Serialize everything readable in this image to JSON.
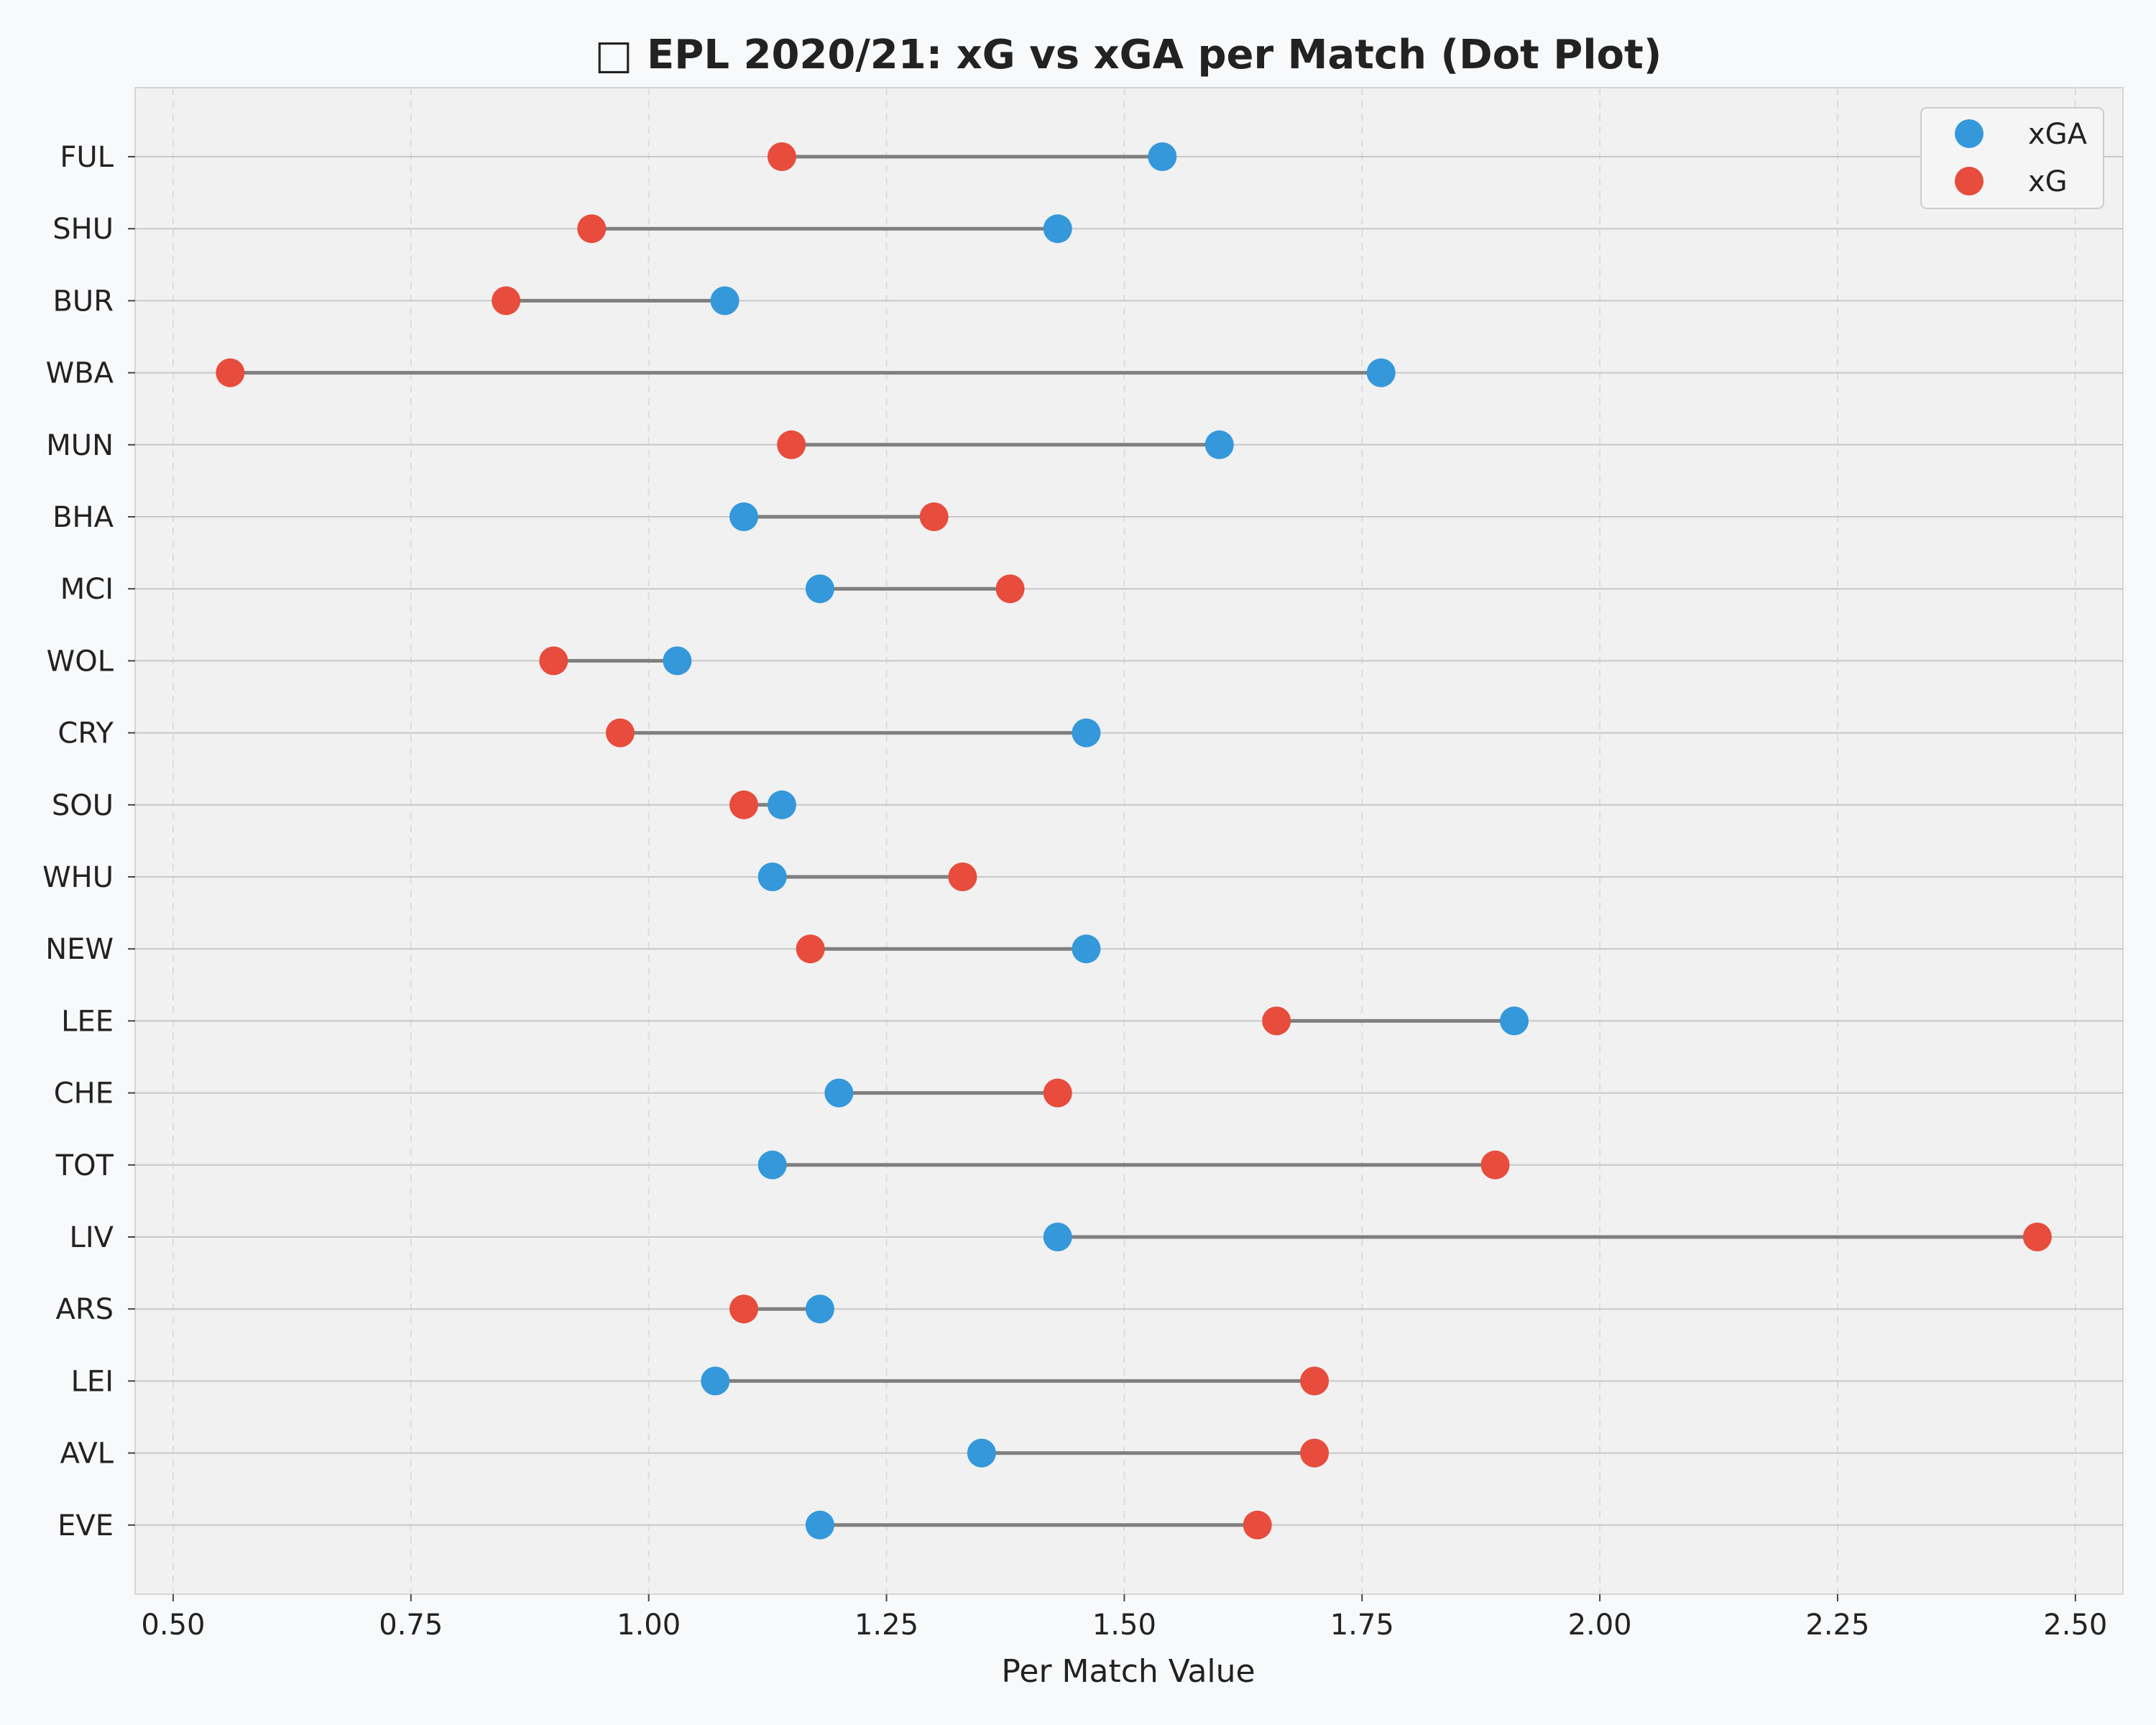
{
  "chart_data": {
    "type": "dot",
    "title": "□ EPL 2020/21: xG vs xGA per Match (Dot Plot)",
    "xlabel": "Per Match Value",
    "ylabel": "",
    "xlim": [
      0.46,
      2.55
    ],
    "x_ticks": [
      0.5,
      0.75,
      1.0,
      1.25,
      1.5,
      1.75,
      2.0,
      2.25,
      2.5
    ],
    "x_tick_labels": [
      "0.50",
      "0.75",
      "1.00",
      "1.25",
      "1.50",
      "1.75",
      "2.00",
      "2.25",
      "2.50"
    ],
    "grid": true,
    "legend_position": "top-right",
    "categories": [
      "FUL",
      "SHU",
      "BUR",
      "WBA",
      "MUN",
      "BHA",
      "MCI",
      "WOL",
      "CRY",
      "SOU",
      "WHU",
      "NEW",
      "LEE",
      "CHE",
      "TOT",
      "LIV",
      "ARS",
      "LEI",
      "AVL",
      "EVE"
    ],
    "series": [
      {
        "name": "xGA",
        "color": "#3498db",
        "values": [
          1.54,
          1.43,
          1.08,
          1.77,
          1.6,
          1.1,
          1.18,
          1.03,
          1.46,
          1.14,
          1.13,
          1.46,
          1.91,
          1.2,
          1.13,
          1.43,
          1.18,
          1.07,
          1.35,
          1.18
        ]
      },
      {
        "name": "xG",
        "color": "#e74c3c",
        "values": [
          1.14,
          0.94,
          0.85,
          0.56,
          1.15,
          1.3,
          1.38,
          0.9,
          0.97,
          1.1,
          1.33,
          1.17,
          1.66,
          1.43,
          1.89,
          2.46,
          1.1,
          1.7,
          1.7,
          1.64
        ]
      }
    ],
    "connector_color": "#7f7f7f"
  }
}
